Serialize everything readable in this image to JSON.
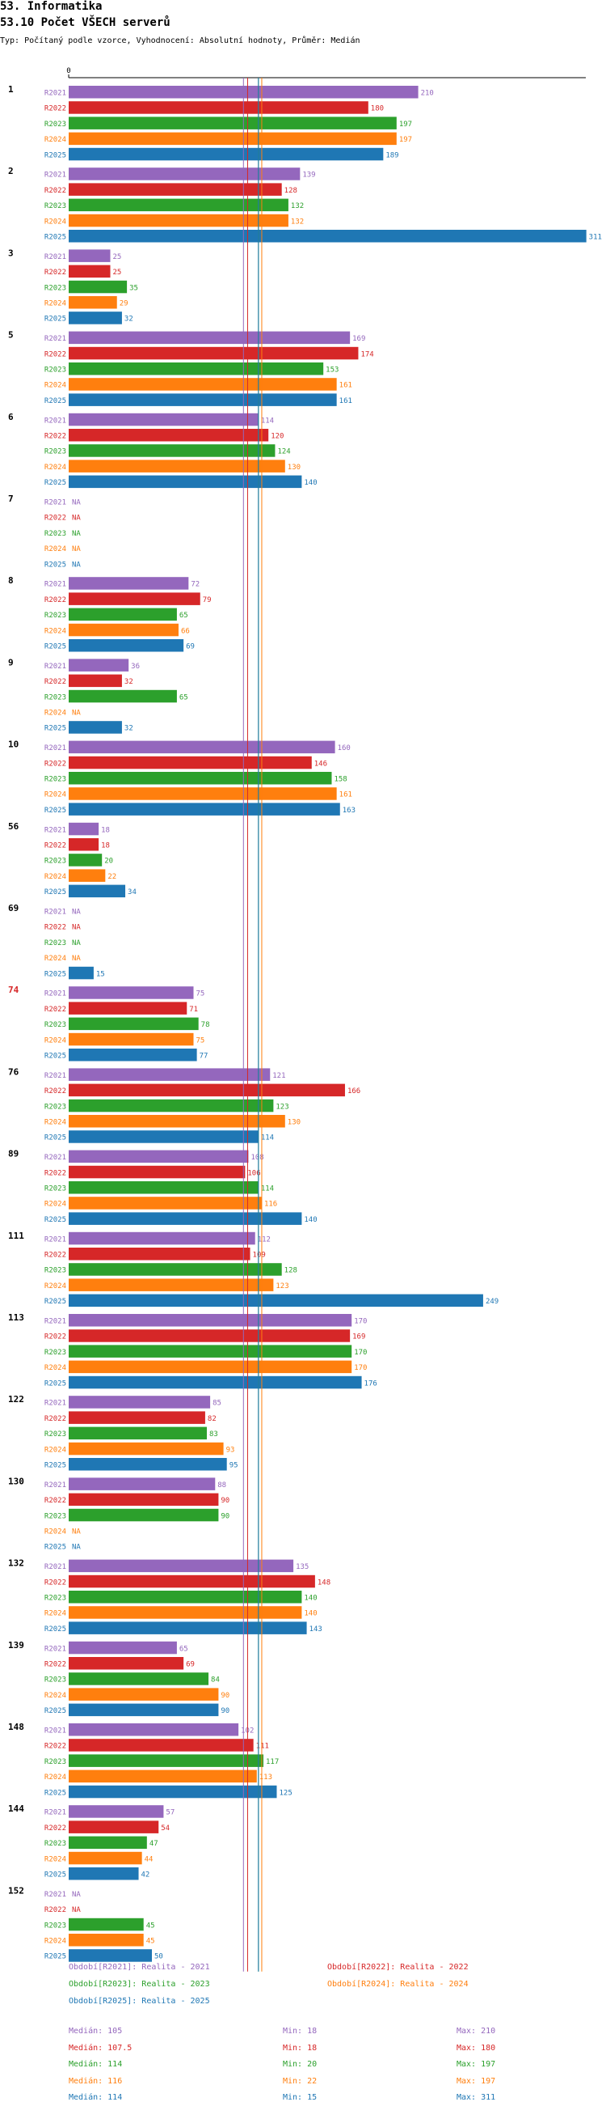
{
  "header": {
    "title": "53. Informatika",
    "subtitle": "53.10 Počet VŠECH serverů",
    "meta": "Typ: Počítaný podle vzorce, Vyhodnocení: Absolutní hodnoty, Průměr: Medián"
  },
  "colors": {
    "R2021": "#9467bd",
    "R2022": "#d62728",
    "R2023": "#2ca02c",
    "R2024": "#ff7f0e",
    "R2025": "#1f77b4",
    "highlight_group": "#d62728"
  },
  "chart_data": {
    "type": "bar",
    "orientation": "horizontal",
    "axis_zero_label": "0",
    "xlim": [
      0,
      311
    ],
    "series_names": [
      "R2021",
      "R2022",
      "R2023",
      "R2024",
      "R2025"
    ],
    "groups": [
      {
        "label": "1",
        "values": [
          210,
          180,
          197,
          197,
          189
        ]
      },
      {
        "label": "2",
        "values": [
          139,
          128,
          132,
          132,
          311
        ]
      },
      {
        "label": "3",
        "values": [
          25,
          25,
          35,
          29,
          32
        ]
      },
      {
        "label": "5",
        "values": [
          169,
          174,
          153,
          161,
          161
        ]
      },
      {
        "label": "6",
        "values": [
          114,
          120,
          124,
          130,
          140
        ]
      },
      {
        "label": "7",
        "values": [
          null,
          null,
          null,
          null,
          null
        ]
      },
      {
        "label": "8",
        "values": [
          72,
          79,
          65,
          66,
          69
        ]
      },
      {
        "label": "9",
        "values": [
          36,
          32,
          65,
          null,
          32
        ]
      },
      {
        "label": "10",
        "values": [
          160,
          146,
          158,
          161,
          163
        ]
      },
      {
        "label": "56",
        "values": [
          18,
          18,
          20,
          22,
          34
        ]
      },
      {
        "label": "69",
        "values": [
          null,
          null,
          null,
          null,
          15
        ]
      },
      {
        "label": "74",
        "values": [
          75,
          71,
          78,
          75,
          77
        ],
        "highlight": true
      },
      {
        "label": "76",
        "values": [
          121,
          166,
          123,
          130,
          114
        ]
      },
      {
        "label": "89",
        "values": [
          108,
          106,
          114,
          116,
          140
        ]
      },
      {
        "label": "111",
        "values": [
          112,
          109,
          128,
          123,
          249
        ]
      },
      {
        "label": "113",
        "values": [
          170,
          169,
          170,
          170,
          176
        ]
      },
      {
        "label": "122",
        "values": [
          85,
          82,
          83,
          93,
          95
        ]
      },
      {
        "label": "130",
        "values": [
          88,
          90,
          90,
          null,
          null
        ]
      },
      {
        "label": "132",
        "values": [
          135,
          148,
          140,
          140,
          143
        ]
      },
      {
        "label": "139",
        "values": [
          65,
          69,
          84,
          90,
          90
        ]
      },
      {
        "label": "148",
        "values": [
          102,
          111,
          117,
          113,
          125
        ]
      },
      {
        "label": "144",
        "values": [
          57,
          54,
          47,
          44,
          42
        ]
      },
      {
        "label": "152",
        "values": [
          null,
          null,
          45,
          45,
          50
        ]
      }
    ],
    "na_label": "NA",
    "median_lines": [
      {
        "series": "R2021",
        "value": 105
      },
      {
        "series": "R2022",
        "value": 107.5
      },
      {
        "series": "R2023",
        "value": 114
      },
      {
        "series": "R2024",
        "value": 116
      },
      {
        "series": "R2025",
        "value": 114
      }
    ]
  },
  "legend": [
    {
      "series": "R2021",
      "text": "Období[R2021]: Realita - 2021"
    },
    {
      "series": "R2022",
      "text": "Období[R2022]: Realita - 2022"
    },
    {
      "series": "R2023",
      "text": "Období[R2023]: Realita - 2023"
    },
    {
      "series": "R2024",
      "text": "Období[R2024]: Realita - 2024"
    },
    {
      "series": "R2025",
      "text": "Období[R2025]: Realita - 2025"
    }
  ],
  "stats": [
    {
      "series": "R2021",
      "median": "Medián: 105",
      "min": "Min: 18",
      "max": "Max: 210"
    },
    {
      "series": "R2022",
      "median": "Medián: 107.5",
      "min": "Min: 18",
      "max": "Max: 180"
    },
    {
      "series": "R2023",
      "median": "Medián: 114",
      "min": "Min: 20",
      "max": "Max: 197"
    },
    {
      "series": "R2024",
      "median": "Medián: 116",
      "min": "Min: 22",
      "max": "Max: 197"
    },
    {
      "series": "R2025",
      "median": "Medián: 114",
      "min": "Min: 15",
      "max": "Max: 311"
    }
  ]
}
